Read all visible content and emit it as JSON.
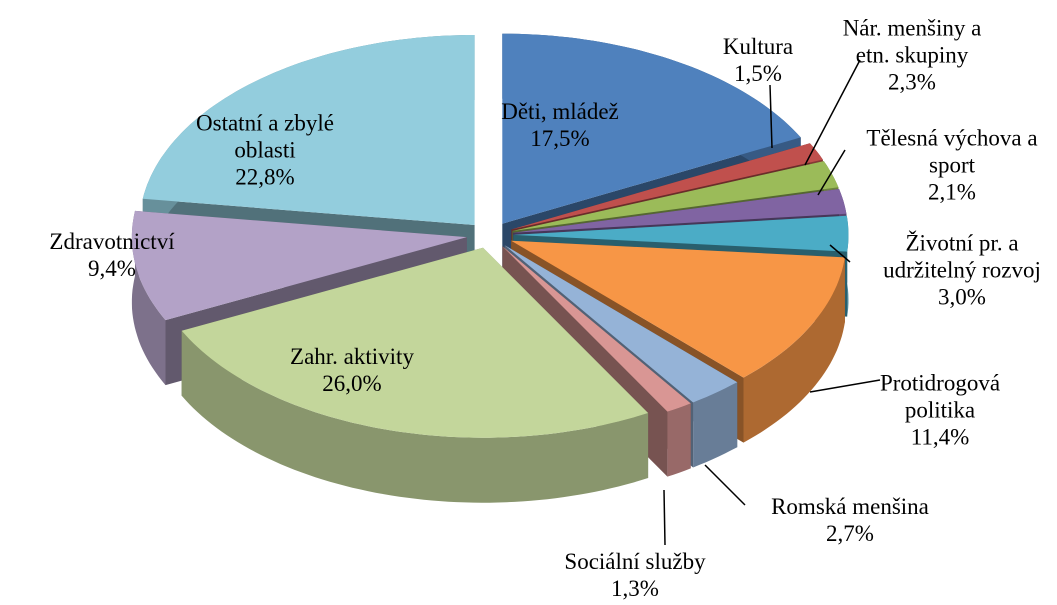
{
  "chart_data": {
    "type": "pie3d",
    "categories": [
      "Děti, mládež",
      "Kultura",
      "Nár. menšiny a etn. skupiny",
      "Tělesná výchova a sport",
      "Životní pr. a udržitelný rozvoj",
      "Protidrogová politika",
      "Romská menšina",
      "Sociální služby",
      "Zahr. aktivity",
      "Zdravotnictví",
      "Ostatní a zbylé oblasti"
    ],
    "values": [
      17.5,
      1.5,
      2.3,
      2.1,
      3.0,
      11.4,
      2.7,
      1.3,
      26.0,
      9.4,
      22.8
    ],
    "value_labels": [
      "17,5%",
      "1,5%",
      "2,3%",
      "2,1%",
      "3,0%",
      "11,4%",
      "2,7%",
      "1,3%",
      "26,0%",
      "9,4%",
      "22,8%"
    ],
    "colors": [
      "#4f81bd",
      "#c0504d",
      "#9bbb59",
      "#8064a2",
      "#4bacc6",
      "#f79646",
      "#95b3d7",
      "#d99694",
      "#c3d69b",
      "#b3a2c7",
      "#93cddd"
    ]
  }
}
